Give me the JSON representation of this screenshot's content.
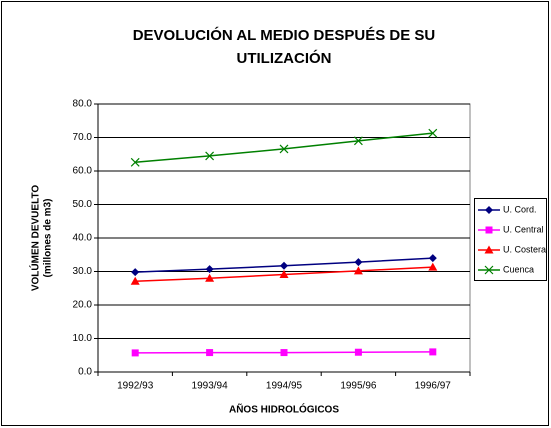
{
  "chart_data": {
    "type": "line",
    "title": [
      "DEVOLUCIÓN AL MEDIO DESPUÉS DE SU",
      "UTILIZACIÓN"
    ],
    "xlabel": "AÑOS HIDROLÓGICOS",
    "ylabel": [
      "VOLÚMEN DEVUELTO",
      "(millones de m3)"
    ],
    "categories": [
      "1992/93",
      "1993/94",
      "1994/95",
      "1995/96",
      "1996/97"
    ],
    "series": [
      {
        "name": "U. Cord.",
        "color": "#000080",
        "marker": "diamond",
        "values": [
          29.8,
          30.7,
          31.7,
          32.8,
          34.0
        ]
      },
      {
        "name": "U. Central",
        "color": "#ff00ff",
        "marker": "square",
        "values": [
          5.7,
          5.8,
          5.8,
          5.9,
          6.0
        ]
      },
      {
        "name": "U. Costera",
        "color": "#ff0000",
        "marker": "triangle",
        "values": [
          27.1,
          28.0,
          29.1,
          30.2,
          31.3
        ]
      },
      {
        "name": "Cuenca",
        "color": "#008000",
        "marker": "x",
        "values": [
          62.6,
          64.5,
          66.6,
          69.0,
          71.3
        ]
      }
    ],
    "ylim": [
      0,
      80
    ],
    "yticks": [
      {
        "value": 0,
        "label": "0.0"
      },
      {
        "value": 10,
        "label": "10.0"
      },
      {
        "value": 20,
        "label": "20.0"
      },
      {
        "value": 30,
        "label": "30.0"
      },
      {
        "value": 40,
        "label": "40.0"
      },
      {
        "value": 50,
        "label": "50.0"
      },
      {
        "value": 60,
        "label": "60.0"
      },
      {
        "value": 70,
        "label": "70.0"
      },
      {
        "value": 80,
        "label": "80.0"
      }
    ],
    "grid": true,
    "legend": "right"
  }
}
